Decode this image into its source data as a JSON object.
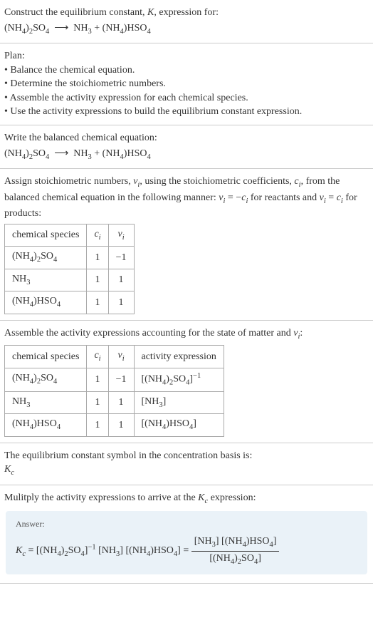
{
  "header": {
    "line1": "Construct the equilibrium constant, K, expression for:",
    "equation_lhs": "(NH₄)₂SO₄",
    "arrow": "⟶",
    "equation_rhs": "NH₃ + (NH₄)HSO₄"
  },
  "plan": {
    "title": "Plan:",
    "items": [
      "• Balance the chemical equation.",
      "• Determine the stoichiometric numbers.",
      "• Assemble the activity expression for each chemical species.",
      "• Use the activity expressions to build the equilibrium constant expression."
    ]
  },
  "balanced": {
    "title": "Write the balanced chemical equation:",
    "equation_lhs": "(NH₄)₂SO₄",
    "arrow": "⟶",
    "equation_rhs": "NH₃ + (NH₄)HSO₄"
  },
  "stoich": {
    "intro1": "Assign stoichiometric numbers, νᵢ, using the stoichiometric coefficients, cᵢ, from",
    "intro2": "the balanced chemical equation in the following manner: νᵢ = −cᵢ for reactants",
    "intro3": "and νᵢ = cᵢ for products:",
    "headers": {
      "species": "chemical species",
      "ci": "cᵢ",
      "vi": "νᵢ"
    },
    "rows": [
      {
        "species": "(NH₄)₂SO₄",
        "ci": "1",
        "vi": "−1"
      },
      {
        "species": "NH₃",
        "ci": "1",
        "vi": "1"
      },
      {
        "species": "(NH₄)HSO₄",
        "ci": "1",
        "vi": "1"
      }
    ]
  },
  "activity": {
    "intro": "Assemble the activity expressions accounting for the state of matter and νᵢ:",
    "headers": {
      "species": "chemical species",
      "ci": "cᵢ",
      "vi": "νᵢ",
      "expr": "activity expression"
    },
    "rows": [
      {
        "species": "(NH₄)₂SO₄",
        "ci": "1",
        "vi": "−1",
        "expr": "[(NH₄)₂SO₄]⁻¹"
      },
      {
        "species": "NH₃",
        "ci": "1",
        "vi": "1",
        "expr": "[NH₃]"
      },
      {
        "species": "(NH₄)HSO₄",
        "ci": "1",
        "vi": "1",
        "expr": "[(NH₄)HSO₄]"
      }
    ]
  },
  "symbol": {
    "line1": "The equilibrium constant symbol in the concentration basis is:",
    "kc": "K_c"
  },
  "multiply": {
    "line": "Mulitply the activity expressions to arrive at the K_c expression:"
  },
  "answer": {
    "label": "Answer:",
    "lhs": "K_c = [(NH₄)₂SO₄]⁻¹ [NH₃] [(NH₄)HSO₄] = ",
    "frac_num": "[NH₃] [(NH₄)HSO₄]",
    "frac_den": "[(NH₄)₂SO₄]"
  },
  "colors": {
    "border": "#cccccc",
    "table_border": "#aaaaaa",
    "answer_bg": "#eaf2f8",
    "text": "#333333"
  }
}
